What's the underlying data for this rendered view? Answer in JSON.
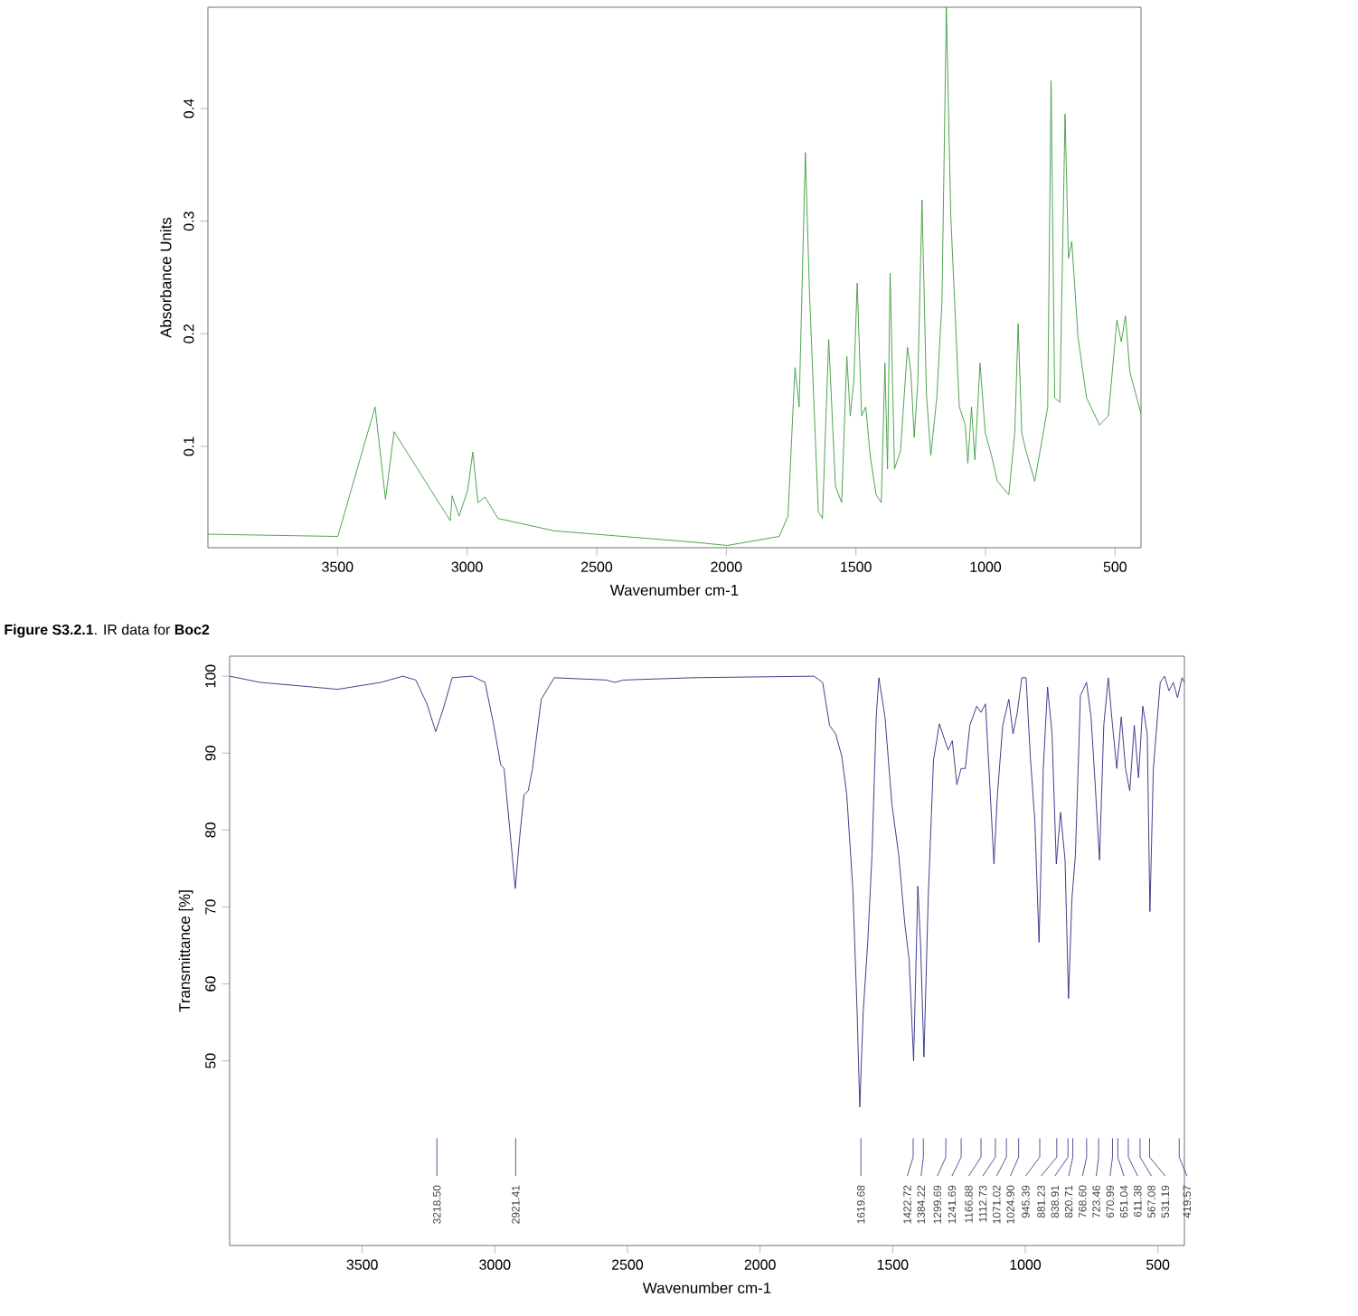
{
  "chart_data": [
    {
      "type": "line",
      "xlabel": "Wavenumber cm-1",
      "ylabel": "Absorbance Units",
      "xlim": [
        4000,
        400
      ],
      "ylim": [
        0.01,
        0.49
      ],
      "xticks": [
        3500,
        3000,
        2500,
        2000,
        1500,
        1000,
        500
      ],
      "yticks": [
        0.1,
        0.2,
        0.3,
        0.4
      ],
      "series": [
        {
          "color": "#3c9a3c",
          "x": [
            4000,
            3499,
            3355,
            3315,
            3282,
            3065,
            3058,
            3031,
            2998,
            2978,
            2958,
            2931,
            2881,
            2664,
            2130,
            1996,
            1796,
            1762,
            1735,
            1719,
            1695,
            1679,
            1645,
            1629,
            1605,
            1579,
            1555,
            1535,
            1522,
            1508,
            1495,
            1478,
            1462,
            1445,
            1422,
            1402,
            1388,
            1378,
            1368,
            1351,
            1328,
            1301,
            1288,
            1275,
            1261,
            1245,
            1228,
            1211,
            1188,
            1168,
            1151,
            1134,
            1101,
            1078,
            1068,
            1054,
            1041,
            1021,
            1001,
            977,
            954,
            910,
            887,
            874,
            860,
            844,
            810,
            777,
            760,
            747,
            733,
            713,
            693,
            680,
            667,
            643,
            610,
            560,
            526,
            493,
            476,
            460,
            443,
            400
          ],
          "values": [
            0.022,
            0.02,
            0.135,
            0.053,
            0.113,
            0.034,
            0.056,
            0.038,
            0.061,
            0.095,
            0.05,
            0.055,
            0.036,
            0.025,
            0.015,
            0.012,
            0.02,
            0.038,
            0.17,
            0.135,
            0.361,
            0.236,
            0.042,
            0.036,
            0.195,
            0.065,
            0.05,
            0.18,
            0.127,
            0.158,
            0.245,
            0.127,
            0.135,
            0.092,
            0.057,
            0.05,
            0.174,
            0.08,
            0.254,
            0.08,
            0.096,
            0.188,
            0.166,
            0.108,
            0.158,
            0.319,
            0.147,
            0.092,
            0.143,
            0.228,
            0.49,
            0.305,
            0.135,
            0.119,
            0.085,
            0.135,
            0.088,
            0.174,
            0.112,
            0.092,
            0.069,
            0.057,
            0.112,
            0.209,
            0.112,
            0.096,
            0.069,
            0.112,
            0.135,
            0.425,
            0.143,
            0.139,
            0.395,
            0.267,
            0.282,
            0.197,
            0.143,
            0.119,
            0.127,
            0.212,
            0.193,
            0.216,
            0.166,
            0.129
          ]
        }
      ],
      "annotations": [
        "**Figure S3.2.1**. IR data for **Boc2**"
      ]
    },
    {
      "type": "line",
      "xlabel": "Wavenumber cm-1",
      "ylabel": "Transmittance [%]",
      "xlim": [
        4000,
        400
      ],
      "ylim": [
        26,
        102.6
      ],
      "xticks": [
        3500,
        3000,
        2500,
        2000,
        1500,
        1000,
        500
      ],
      "yticks": [
        50,
        60,
        70,
        80,
        90,
        100
      ],
      "series": [
        {
          "color": "#2b2b80",
          "x": [
            4000,
            3886,
            3592,
            3429,
            3347,
            3298,
            3256,
            3223,
            3194,
            3161,
            3086,
            3037,
            3004,
            2978,
            2965,
            2956,
            2939,
            2923,
            2907,
            2890,
            2874,
            2858,
            2825,
            2776,
            2580,
            2548,
            2515,
            2254,
            1797,
            1764,
            1738,
            1715,
            1692,
            1673,
            1650,
            1634,
            1624,
            1611,
            1594,
            1578,
            1562,
            1552,
            1529,
            1503,
            1477,
            1454,
            1438,
            1421,
            1405,
            1395,
            1382,
            1366,
            1346,
            1324,
            1291,
            1275,
            1258,
            1242,
            1226,
            1209,
            1183,
            1167,
            1150,
            1137,
            1118,
            1105,
            1085,
            1062,
            1046,
            1030,
            1013,
            997,
            981,
            964,
            948,
            932,
            916,
            899,
            883,
            867,
            850,
            837,
            824,
            811,
            792,
            769,
            752,
            736,
            720,
            704,
            687,
            671,
            655,
            638,
            622,
            606,
            589,
            573,
            557,
            540,
            530,
            517,
            491,
            475,
            458,
            442,
            426,
            409,
            400
          ],
          "values": [
            100,
            99.2,
            98.3,
            99.2,
            100,
            99.5,
            96.4,
            92.8,
            95.8,
            99.8,
            100,
            99.2,
            93.6,
            88.5,
            88.0,
            84.6,
            78.4,
            72.4,
            78.9,
            84.6,
            85.1,
            88.0,
            97.0,
            99.8,
            99.5,
            99.2,
            99.5,
            99.8,
            100,
            99.2,
            93.6,
            92.5,
            89.6,
            84.6,
            72.2,
            56.4,
            44.0,
            56.4,
            65.4,
            76.7,
            94.7,
            99.8,
            94.7,
            83.4,
            76.7,
            67.7,
            63.2,
            50.0,
            72.7,
            65.4,
            50.5,
            71.1,
            89.1,
            93.8,
            90.4,
            91.6,
            85.9,
            88.0,
            88.0,
            93.6,
            96.1,
            95.3,
            96.4,
            88.0,
            75.6,
            84.6,
            93.6,
            97.0,
            92.5,
            95.3,
            99.8,
            99.8,
            89.6,
            81.2,
            65.4,
            88.0,
            98.6,
            92.5,
            75.6,
            82.3,
            76.1,
            58.1,
            71.1,
            76.7,
            97.5,
            99.2,
            94.7,
            85.7,
            76.1,
            93.6,
            99.8,
            93.6,
            88.0,
            94.7,
            88.0,
            85.1,
            93.6,
            86.8,
            96.1,
            92.5,
            69.4,
            88.0,
            99.2,
            100,
            98.1,
            99.2,
            97.2,
            99.8,
            99.2
          ]
        }
      ],
      "annotations": [
        {
          "text": "3218.50",
          "x": 3218.5
        },
        {
          "text": "2921.41",
          "x": 2921.41
        },
        {
          "text": "1619.68",
          "x": 1619.68
        },
        {
          "text": "1422.72",
          "x": 1422.72
        },
        {
          "text": "1384.22",
          "x": 1384.22
        },
        {
          "text": "1299.69",
          "x": 1299.69
        },
        {
          "text": "1241.69",
          "x": 1241.69
        },
        {
          "text": "1166.88",
          "x": 1166.88
        },
        {
          "text": "1112.73",
          "x": 1112.73
        },
        {
          "text": "1071.02",
          "x": 1071.02
        },
        {
          "text": "1024.90",
          "x": 1024.9
        },
        {
          "text": "945.39",
          "x": 945.39
        },
        {
          "text": "881.23",
          "x": 881.23
        },
        {
          "text": "838.91",
          "x": 838.91
        },
        {
          "text": "820.71",
          "x": 820.71
        },
        {
          "text": "768.60",
          "x": 768.6
        },
        {
          "text": "723.46",
          "x": 723.46
        },
        {
          "text": "670.99",
          "x": 670.99
        },
        {
          "text": "651.04",
          "x": 651.04
        },
        {
          "text": "611.38",
          "x": 611.38
        },
        {
          "text": "567.08",
          "x": 567.08
        },
        {
          "text": "531.19",
          "x": 531.19
        },
        {
          "text": "419.57",
          "x": 419.57
        }
      ]
    }
  ]
}
